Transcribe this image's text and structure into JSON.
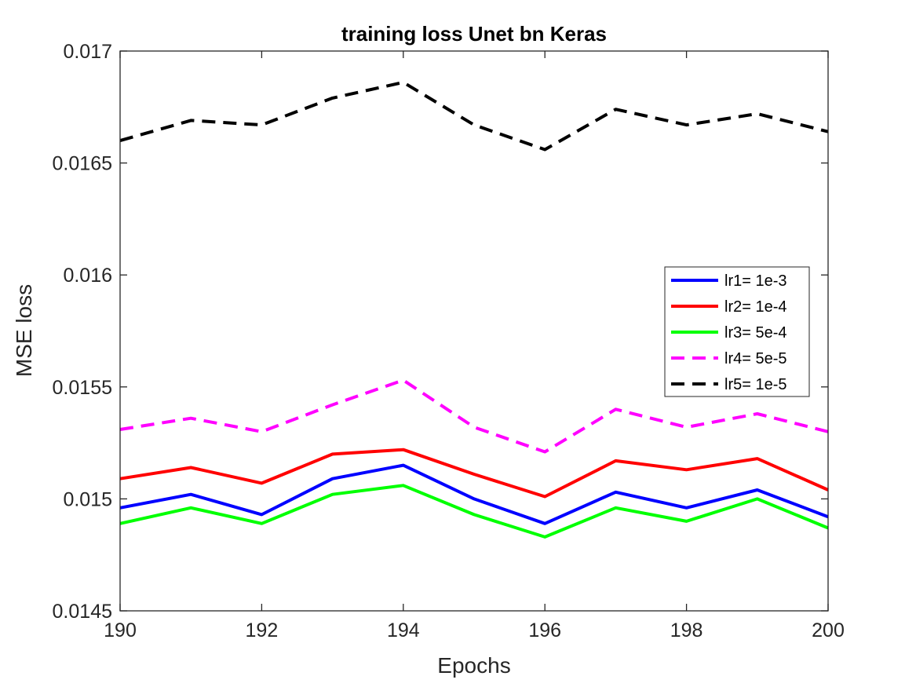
{
  "chart_data": {
    "type": "line",
    "title": "training loss Unet bn Keras",
    "xlabel": "Epochs",
    "ylabel": "MSE loss",
    "xlim": [
      190,
      200
    ],
    "ylim": [
      0.0145,
      0.017
    ],
    "xticks": [
      190,
      192,
      194,
      196,
      198,
      200
    ],
    "yticks": [
      0.0145,
      0.015,
      0.0155,
      0.016,
      0.0165,
      0.017
    ],
    "xtick_labels": [
      "190",
      "192",
      "194",
      "196",
      "198",
      "200"
    ],
    "ytick_labels": [
      "0.0145",
      "0.015",
      "0.0155",
      "0.016",
      "0.0165",
      "0.017"
    ],
    "grid": false,
    "legend_position": "right",
    "x": [
      190,
      191,
      192,
      193,
      194,
      195,
      196,
      197,
      198,
      199,
      200
    ],
    "series": [
      {
        "name": "lr1= 1e-3",
        "color": "#0000ff",
        "style": "solid",
        "values": [
          0.01496,
          0.01502,
          0.01493,
          0.01509,
          0.01515,
          0.015,
          0.01489,
          0.01503,
          0.01496,
          0.01504,
          0.01492
        ]
      },
      {
        "name": "lr2= 1e-4",
        "color": "#ff0000",
        "style": "solid",
        "values": [
          0.01509,
          0.01514,
          0.01507,
          0.0152,
          0.01522,
          0.01511,
          0.01501,
          0.01517,
          0.01513,
          0.01518,
          0.01504
        ]
      },
      {
        "name": "lr3= 5e-4",
        "color": "#00ff00",
        "style": "solid",
        "values": [
          0.01489,
          0.01496,
          0.01489,
          0.01502,
          0.01506,
          0.01493,
          0.01483,
          0.01496,
          0.0149,
          0.015,
          0.01487
        ]
      },
      {
        "name": "lr4= 5e-5",
        "color": "#ff00ff",
        "style": "dashed",
        "values": [
          0.01531,
          0.01536,
          0.0153,
          0.01542,
          0.01553,
          0.01532,
          0.01521,
          0.0154,
          0.01532,
          0.01538,
          0.0153
        ]
      },
      {
        "name": "lr5= 1e-5",
        "color": "#000000",
        "style": "dashed",
        "values": [
          0.0166,
          0.01669,
          0.01667,
          0.01679,
          0.01686,
          0.01667,
          0.01656,
          0.01674,
          0.01667,
          0.01672,
          0.01664
        ]
      }
    ]
  }
}
